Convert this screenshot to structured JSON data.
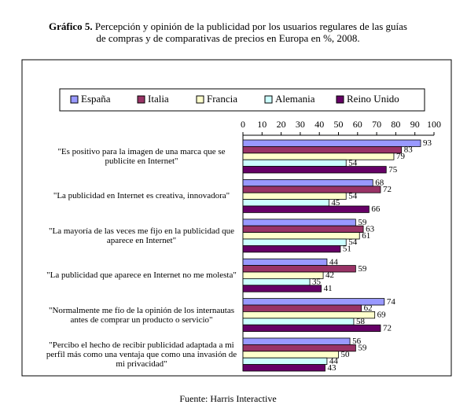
{
  "chart_data": {
    "type": "bar",
    "orientation": "horizontal",
    "title_prefix": "Gráfico 5.",
    "title": "Percepción y opinión de la publicidad por los usuarios regulares de las guías de compras y de comparativas de precios en Europa en %, 2008.",
    "source": "Fuente: Harris Interactive",
    "categories": [
      "\"Es positivo para la imagen de una marca que se publicite en Internet\"",
      "\"La publicidad en Internet es creativa, innovadora\"",
      "\"La mayoría de las veces me fijo en la publicidad que aparece en Internet\"",
      "\"La publicidad que aparece en Internet no me molesta\"",
      "\"Normalmente me fío de la opinión de los internautas antes de comprar un producto o servicio\"",
      "\"Percibo el hecho de recibir publicidad adaptada a mi perfil más como una ventaja que como una invasión de mi privacidad\""
    ],
    "series": [
      {
        "name": "España",
        "color": "#9999ff",
        "values": [
          93,
          68,
          59,
          44,
          74,
          56
        ]
      },
      {
        "name": "Italia",
        "color": "#993366",
        "values": [
          83,
          72,
          63,
          59,
          62,
          59
        ]
      },
      {
        "name": "Francia",
        "color": "#ffffcc",
        "values": [
          79,
          54,
          61,
          42,
          69,
          50
        ]
      },
      {
        "name": "Alemania",
        "color": "#ccffff",
        "values": [
          54,
          45,
          54,
          35,
          58,
          44
        ]
      },
      {
        "name": "Reino Unido",
        "color": "#660066",
        "values": [
          75,
          66,
          51,
          41,
          72,
          43
        ]
      }
    ],
    "xlim": [
      0,
      100
    ],
    "xticks": [
      0,
      10,
      20,
      30,
      40,
      50,
      60,
      70,
      80,
      90,
      100
    ],
    "legend": "top"
  }
}
